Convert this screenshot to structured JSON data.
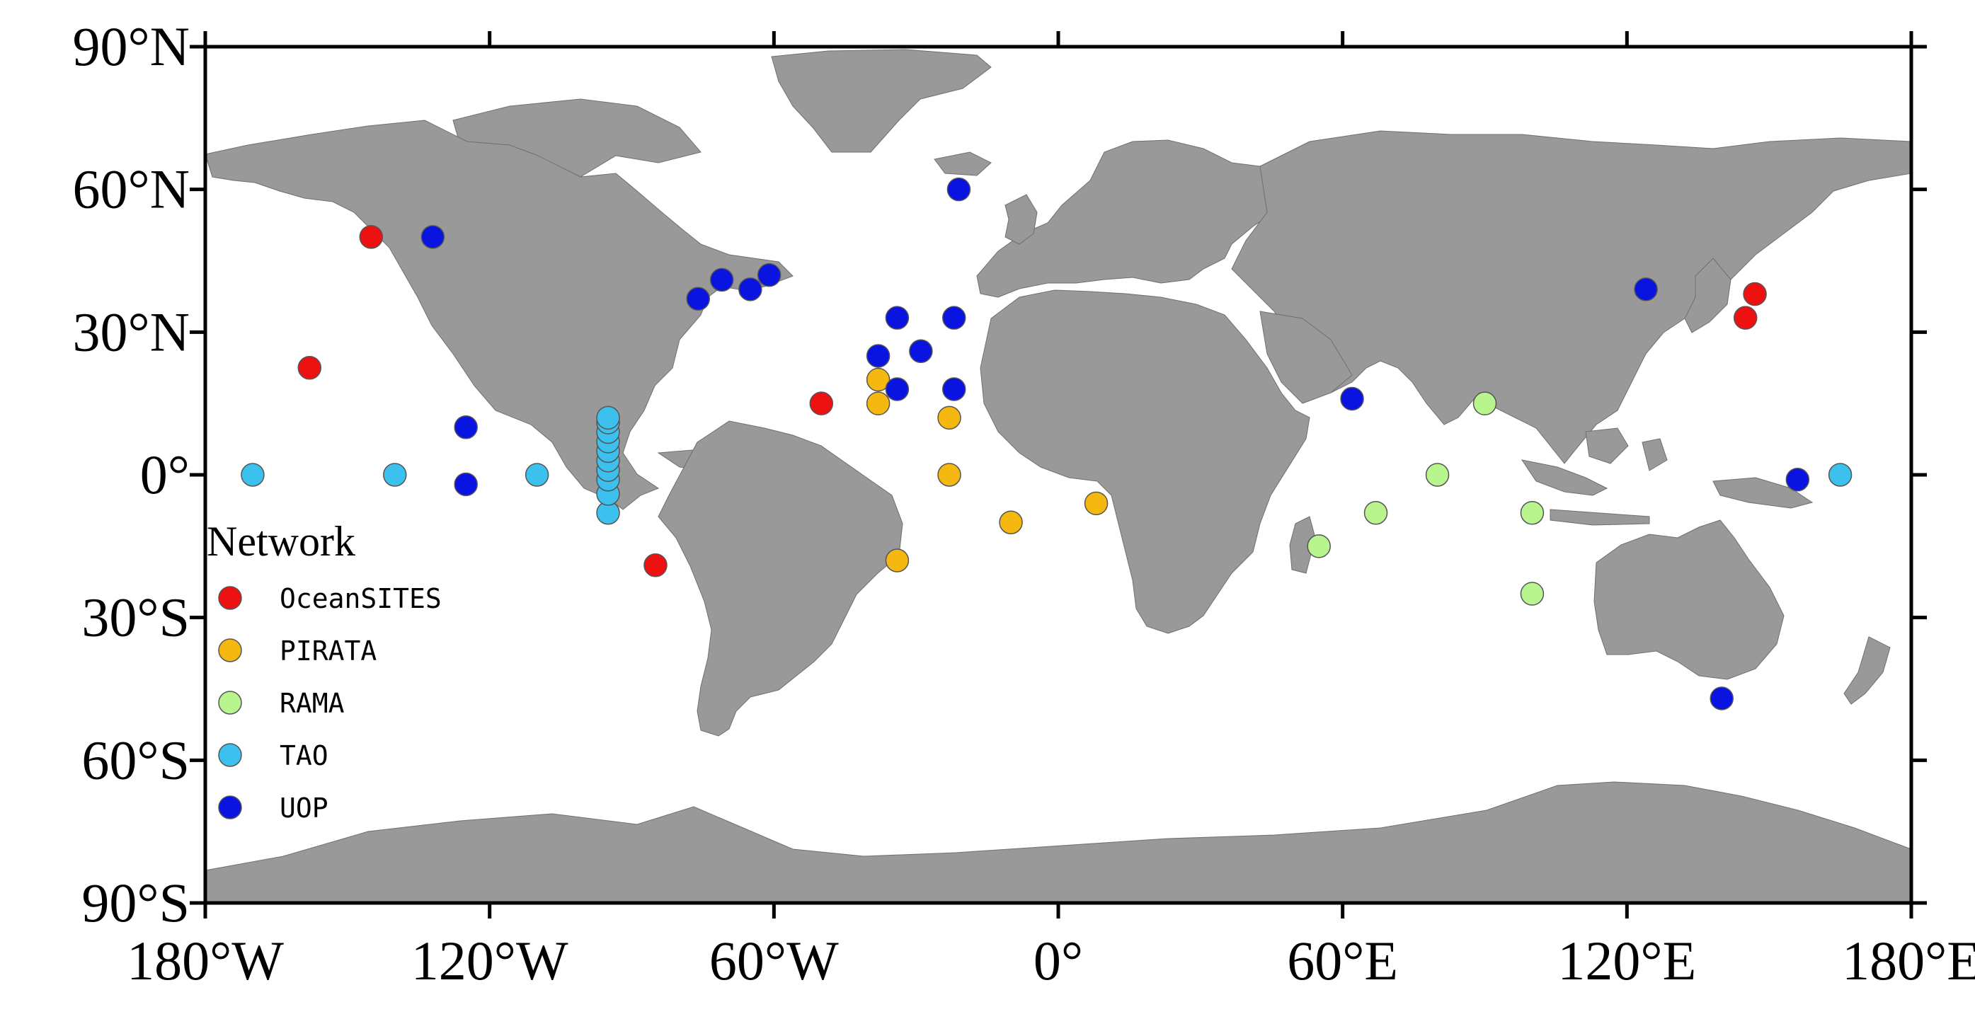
{
  "map": {
    "lon_range": [
      -180,
      180
    ],
    "lat_range": [
      -90,
      90
    ],
    "land_color": "#999999",
    "ocean_color": "#ffffff",
    "x_ticks": [
      {
        "value": -180,
        "label": "180°W"
      },
      {
        "value": -120,
        "label": "120°W"
      },
      {
        "value": -60,
        "label": "60°W"
      },
      {
        "value": 0,
        "label": "0°"
      },
      {
        "value": 60,
        "label": "60°E"
      },
      {
        "value": 120,
        "label": "120°E"
      },
      {
        "value": 180,
        "label": "180°E"
      }
    ],
    "y_ticks": [
      {
        "value": 90,
        "label": "90°N"
      },
      {
        "value": 60,
        "label": "60°N"
      },
      {
        "value": 30,
        "label": "30°N"
      },
      {
        "value": 0,
        "label": "0°"
      },
      {
        "value": -30,
        "label": "30°S"
      },
      {
        "value": -60,
        "label": "60°S"
      },
      {
        "value": -90,
        "label": "90°S"
      }
    ]
  },
  "legend": {
    "title": "Network",
    "placement": "lower-left",
    "items": [
      {
        "name": "OceanSITES",
        "color": "#ee1111"
      },
      {
        "name": "PIRATA",
        "color": "#f5b811"
      },
      {
        "name": "RAMA",
        "color": "#b9f58f"
      },
      {
        "name": "TAO",
        "color": "#3cc0ee"
      },
      {
        "name": "UOP",
        "color": "#0a14e0"
      }
    ]
  },
  "stations": {
    "OceanSITES": [
      [
        -145,
        50
      ],
      [
        -158,
        22.5
      ],
      [
        -50,
        15
      ],
      [
        -85,
        -19
      ],
      [
        147,
        38
      ],
      [
        145,
        33
      ]
    ],
    "PIRATA": [
      [
        -38,
        20
      ],
      [
        -38,
        15
      ],
      [
        -23,
        12
      ],
      [
        -23,
        0
      ],
      [
        -10,
        -10
      ],
      [
        8,
        -6
      ],
      [
        -34,
        -18
      ]
    ],
    "RAMA": [
      [
        90,
        15
      ],
      [
        80,
        0
      ],
      [
        67,
        -8
      ],
      [
        55,
        -15
      ],
      [
        100,
        -8
      ],
      [
        100,
        -25
      ]
    ],
    "TAO": [
      [
        -170,
        0
      ],
      [
        -140,
        0
      ],
      [
        -110,
        0
      ],
      [
        -95,
        -8
      ],
      [
        -95,
        -4
      ],
      [
        -95,
        -1
      ],
      [
        -95,
        1
      ],
      [
        -95,
        3
      ],
      [
        -95,
        5
      ],
      [
        -95,
        7
      ],
      [
        -95,
        9
      ],
      [
        -95,
        11
      ],
      [
        -95,
        12
      ],
      [
        165,
        0
      ]
    ],
    "UOP": [
      [
        -132,
        50
      ],
      [
        -125,
        10
      ],
      [
        -125,
        -2
      ],
      [
        -76,
        37
      ],
      [
        -71,
        41
      ],
      [
        -65,
        39
      ],
      [
        -61,
        42
      ],
      [
        -34,
        33
      ],
      [
        -38,
        25
      ],
      [
        -29,
        26
      ],
      [
        -34,
        18
      ],
      [
        -22,
        33
      ],
      [
        -22,
        18
      ],
      [
        -21,
        60
      ],
      [
        62,
        16
      ],
      [
        124,
        39
      ],
      [
        156,
        -1
      ],
      [
        140,
        -47
      ]
    ]
  }
}
